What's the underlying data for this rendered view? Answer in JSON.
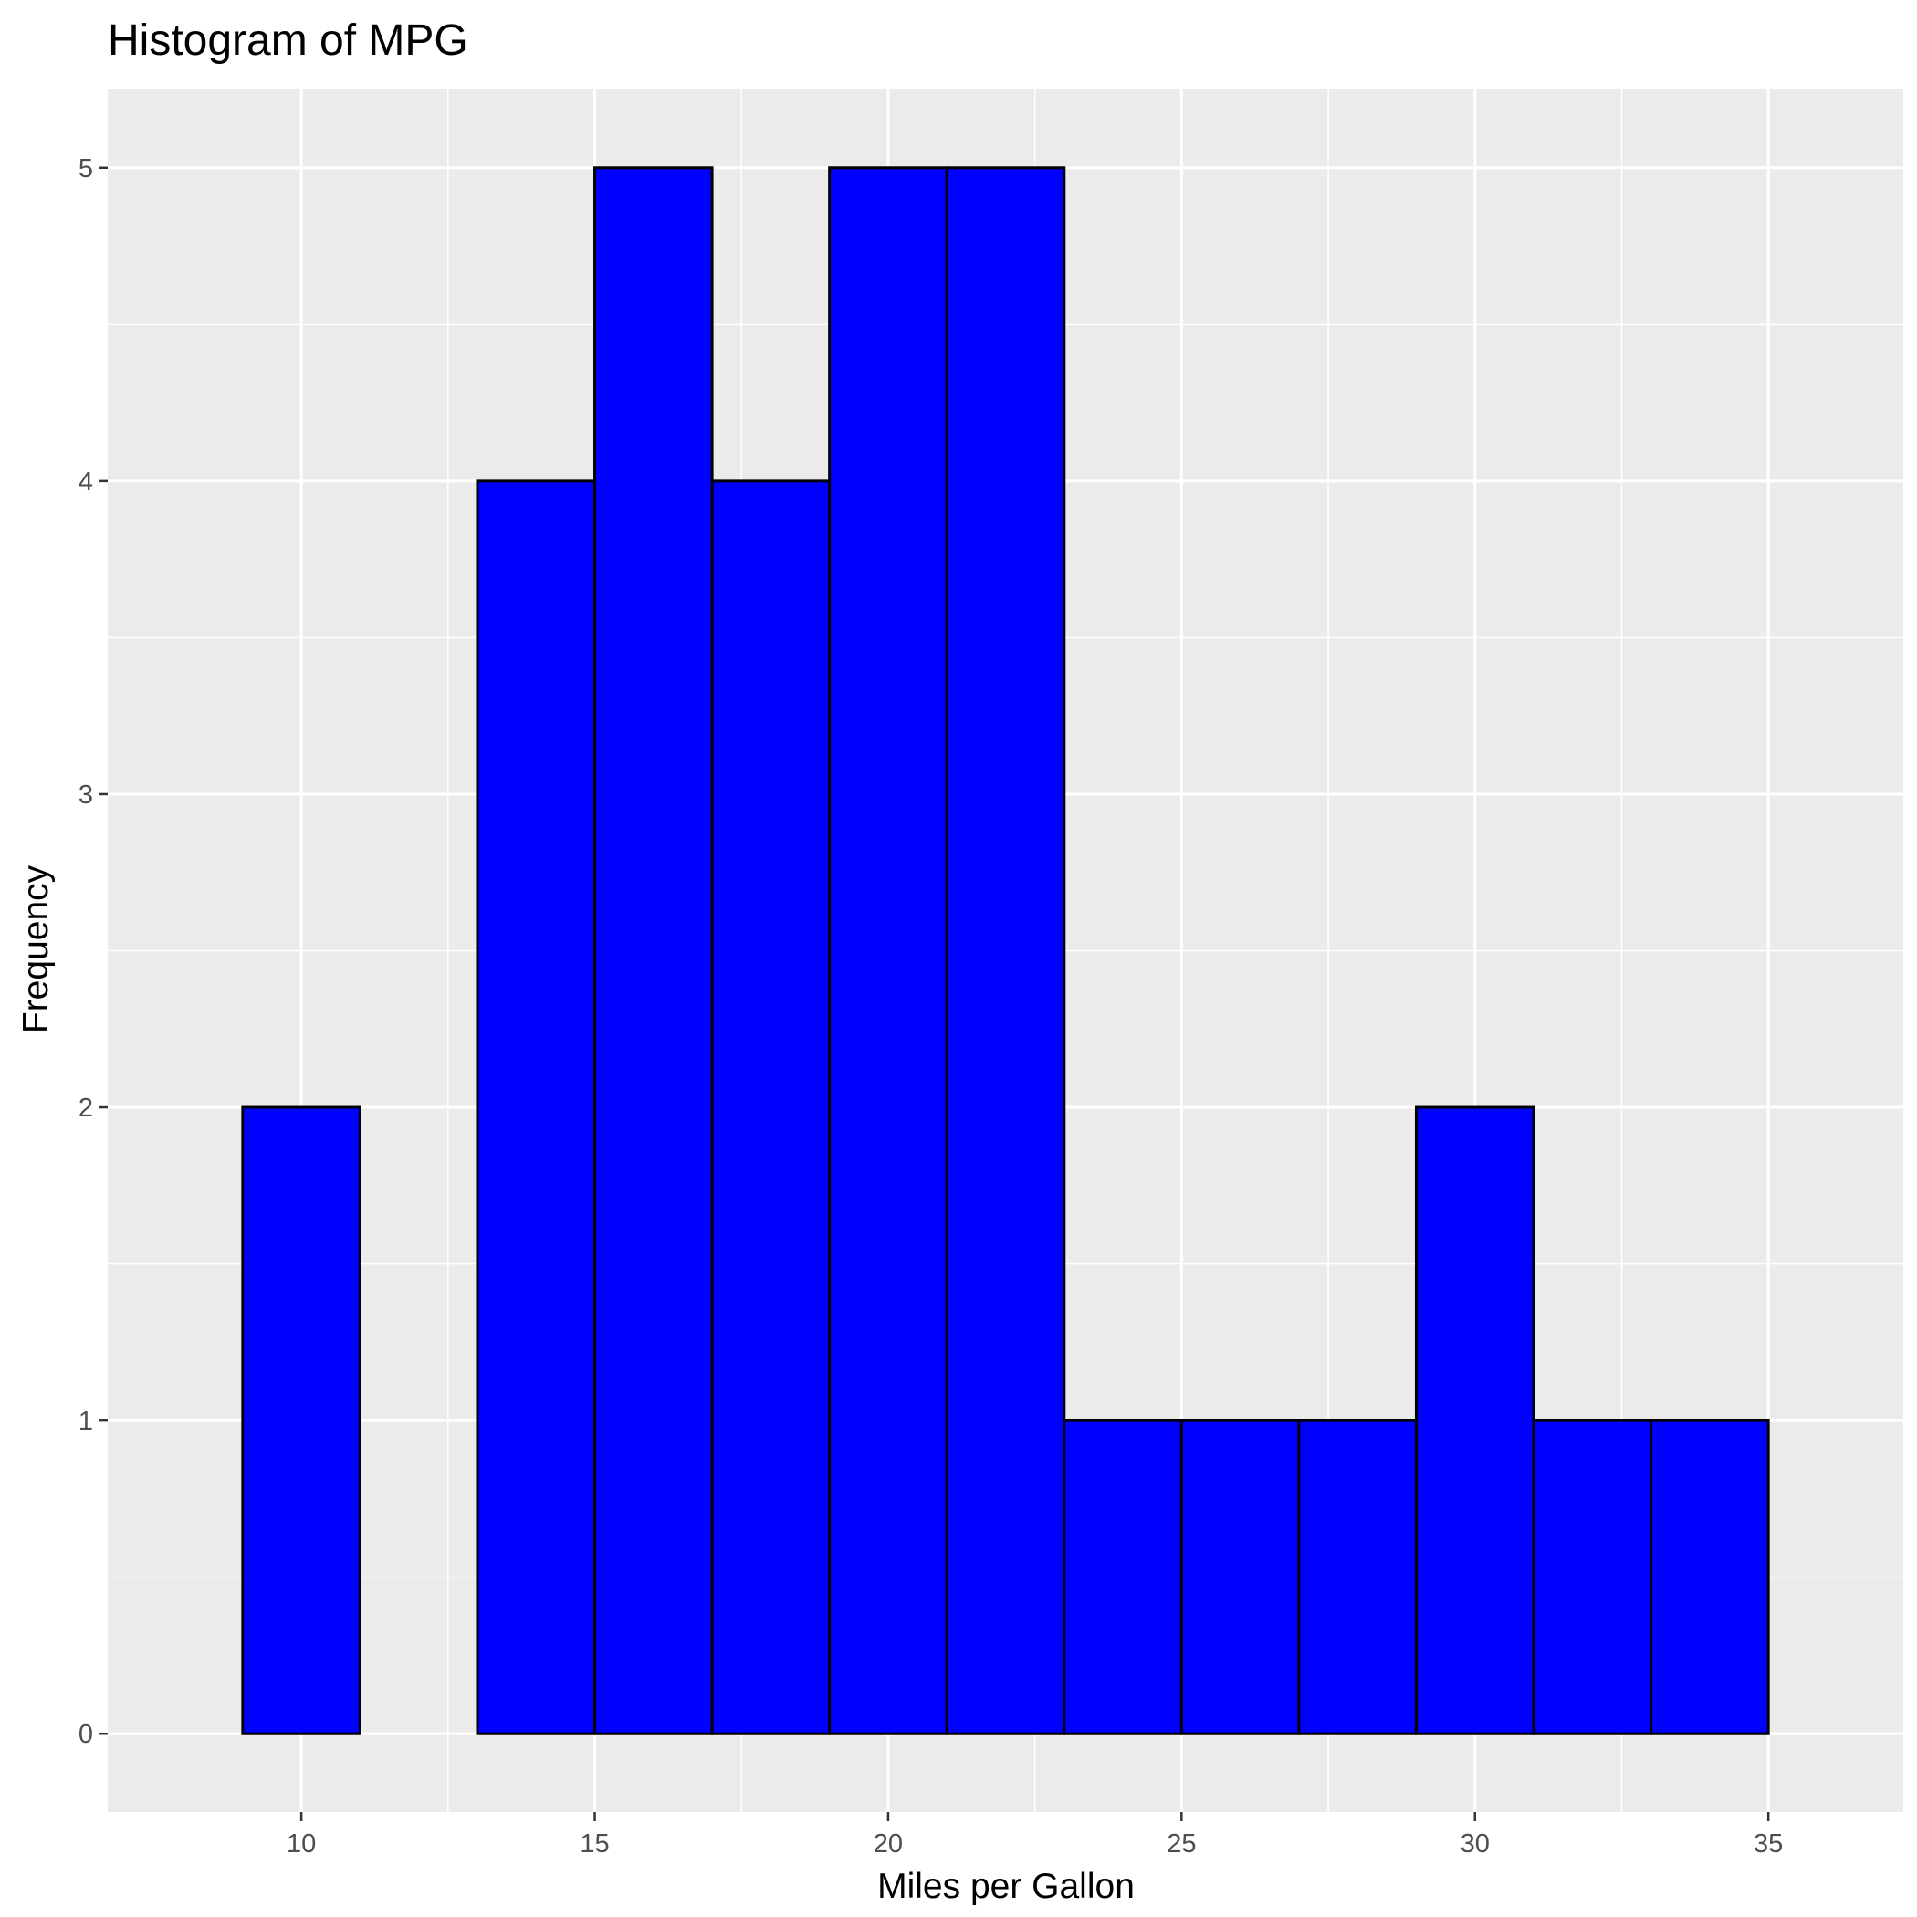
{
  "chart_data": {
    "type": "bar",
    "title": "Histogram of MPG",
    "xlabel": "Miles per Gallon",
    "ylabel": "Frequency",
    "bins": [
      {
        "x0": 9,
        "x1": 11,
        "count": 2
      },
      {
        "x0": 11,
        "x1": 13,
        "count": 0
      },
      {
        "x0": 13,
        "x1": 15,
        "count": 4
      },
      {
        "x0": 15,
        "x1": 17,
        "count": 5
      },
      {
        "x0": 17,
        "x1": 19,
        "count": 4
      },
      {
        "x0": 19,
        "x1": 21,
        "count": 5
      },
      {
        "x0": 21,
        "x1": 23,
        "count": 5
      },
      {
        "x0": 23,
        "x1": 25,
        "count": 1
      },
      {
        "x0": 25,
        "x1": 27,
        "count": 1
      },
      {
        "x0": 27,
        "x1": 29,
        "count": 1
      },
      {
        "x0": 29,
        "x1": 31,
        "count": 2
      },
      {
        "x0": 31,
        "x1": 33,
        "count": 1
      },
      {
        "x0": 33,
        "x1": 35,
        "count": 1
      }
    ],
    "xlim": [
      6.7,
      37.3
    ],
    "ylim": [
      -0.25,
      5.25
    ],
    "x_ticks": [
      10,
      15,
      20,
      25,
      30,
      35
    ],
    "x_tick_labels": [
      "10",
      "15",
      "20",
      "25",
      "30",
      "35"
    ],
    "y_ticks": [
      0,
      1,
      2,
      3,
      4,
      5
    ],
    "y_tick_labels": [
      "0",
      "1",
      "2",
      "3",
      "4",
      "5"
    ],
    "grid": true,
    "legend": "none",
    "colors": {
      "bar_fill": "#0000FF",
      "bar_outline": "#000000",
      "panel_background": "#EBEBEB",
      "grid": "#FFFFFF",
      "tick_text": "#4D4D4D",
      "axis_ticks": "#333333"
    }
  }
}
